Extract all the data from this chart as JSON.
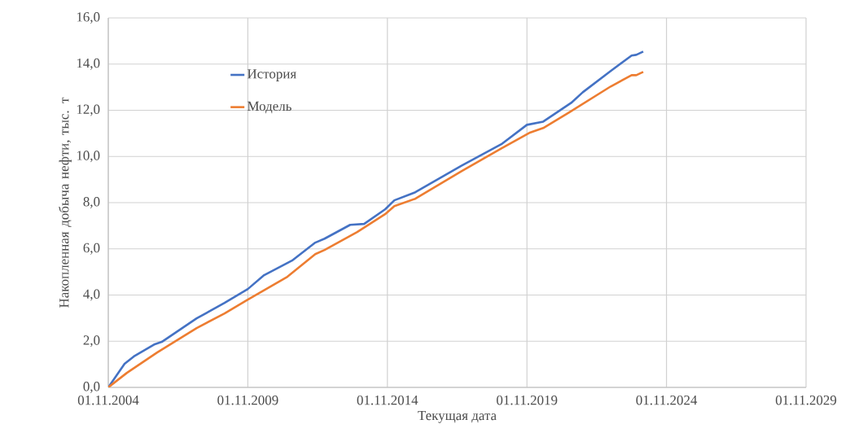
{
  "chart_data": {
    "type": "line",
    "xlabel": "Текущая дата",
    "ylabel": "Накопленная добыча нефти, тыс. т",
    "xlim": [
      "2004-11-01",
      "2029-11-01"
    ],
    "xticks": [
      {
        "value": "2004-11-01",
        "label": "01.11.2004"
      },
      {
        "value": "2009-11-01",
        "label": "01.11.2009"
      },
      {
        "value": "2014-11-01",
        "label": "01.11.2014"
      },
      {
        "value": "2019-11-01",
        "label": "01.11.2019"
      },
      {
        "value": "2024-11-01",
        "label": "01.11.2024"
      },
      {
        "value": "2029-11-01",
        "label": "01.11.2029"
      }
    ],
    "ylim": [
      0,
      16
    ],
    "yticks": [
      {
        "value": 0,
        "label": "0,0"
      },
      {
        "value": 2,
        "label": "2,0"
      },
      {
        "value": 4,
        "label": "4,0"
      },
      {
        "value": 6,
        "label": "6,0"
      },
      {
        "value": 8,
        "label": "8,0"
      },
      {
        "value": 10,
        "label": "10,0"
      },
      {
        "value": 12,
        "label": "12,0"
      },
      {
        "value": 14,
        "label": "14,0"
      },
      {
        "value": 16,
        "label": "16,0"
      }
    ],
    "grid": true,
    "legend": "top left",
    "marker": "none",
    "line_style": "solid",
    "series": [
      {
        "name": "История",
        "color": "#4472c4",
        "x": [
          "2004-11",
          "2005-06",
          "2005-10",
          "2006-07",
          "2006-10",
          "2008-01",
          "2009-01",
          "2009-11",
          "2010-06",
          "2011-06",
          "2012-04",
          "2012-08",
          "2013-07",
          "2014-01",
          "2014-10",
          "2015-02",
          "2015-11",
          "2017-07",
          "2018-12",
          "2019-11",
          "2020-06",
          "2021-06",
          "2021-11",
          "2022-11",
          "2023-08",
          "2023-10",
          "2024-01"
        ],
        "values": [
          0,
          1.02,
          1.34,
          1.87,
          1.97,
          2.99,
          3.66,
          4.26,
          4.86,
          5.49,
          6.27,
          6.44,
          7.04,
          7.08,
          7.71,
          8.1,
          8.45,
          9.61,
          10.53,
          11.37,
          11.51,
          12.32,
          12.78,
          13.7,
          14.37,
          14.4,
          14.54
        ]
      },
      {
        "name": "Модель",
        "color": "#ed7d31",
        "x": [
          "2004-11",
          "2005-07",
          "2006-08",
          "2008-01",
          "2009-01",
          "2009-11",
          "2011-04",
          "2012-04",
          "2012-08",
          "2013-10",
          "2014-10",
          "2015-02",
          "2015-11",
          "2017-07",
          "2018-12",
          "2019-12",
          "2020-06",
          "2021-05",
          "2022-11",
          "2023-08",
          "2023-10",
          "2024-01"
        ],
        "values": [
          0,
          0.63,
          1.51,
          2.57,
          3.2,
          3.8,
          4.79,
          5.77,
          5.95,
          6.73,
          7.5,
          7.85,
          8.17,
          9.37,
          10.35,
          11.02,
          11.23,
          11.9,
          13.03,
          13.52,
          13.52,
          13.66
        ]
      }
    ]
  }
}
